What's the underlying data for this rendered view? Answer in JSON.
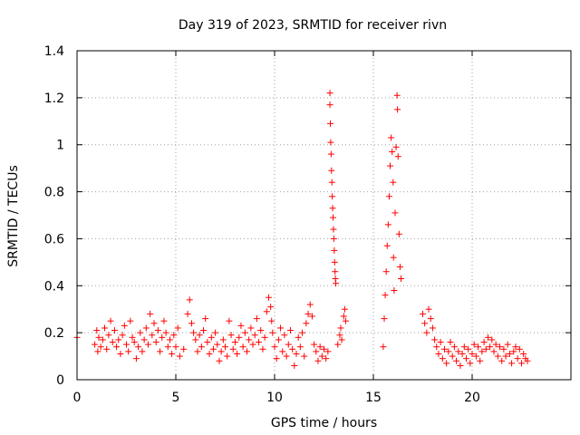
{
  "chart_data": {
    "type": "scatter",
    "title": "Day 319 of 2023, SRMTID for receiver rivn",
    "xlabel": "GPS time / hours",
    "ylabel": "SRMTID / TECUs",
    "xlim": [
      0,
      25
    ],
    "ylim": [
      0,
      1.4
    ],
    "x_ticks": [
      0,
      5,
      10,
      15,
      20
    ],
    "x_tick_labels": [
      "0",
      "5",
      "10",
      "15",
      "20"
    ],
    "y_ticks": [
      0,
      0.2,
      0.4,
      0.6,
      0.8,
      1.0,
      1.2,
      1.4
    ],
    "y_tick_labels": [
      "0",
      "0.2",
      "0.4",
      "0.6",
      "0.8",
      "1",
      "1.2",
      "1.4"
    ],
    "grid": true,
    "marker": "+",
    "color": "#ff0000",
    "series": [
      {
        "name": "SRMTID",
        "points": [
          [
            0.0,
            0.18
          ],
          [
            0.9,
            0.15
          ],
          [
            1.0,
            0.21
          ],
          [
            1.05,
            0.12
          ],
          [
            1.1,
            0.18
          ],
          [
            1.2,
            0.14
          ],
          [
            1.3,
            0.17
          ],
          [
            1.4,
            0.22
          ],
          [
            1.5,
            0.13
          ],
          [
            1.6,
            0.19
          ],
          [
            1.7,
            0.25
          ],
          [
            1.8,
            0.16
          ],
          [
            1.9,
            0.21
          ],
          [
            2.0,
            0.14
          ],
          [
            2.1,
            0.17
          ],
          [
            2.2,
            0.11
          ],
          [
            2.3,
            0.19
          ],
          [
            2.4,
            0.23
          ],
          [
            2.5,
            0.15
          ],
          [
            2.6,
            0.12
          ],
          [
            2.7,
            0.25
          ],
          [
            2.8,
            0.18
          ],
          [
            2.9,
            0.16
          ],
          [
            3.0,
            0.09
          ],
          [
            3.1,
            0.14
          ],
          [
            3.2,
            0.2
          ],
          [
            3.3,
            0.12
          ],
          [
            3.4,
            0.17
          ],
          [
            3.5,
            0.22
          ],
          [
            3.6,
            0.15
          ],
          [
            3.7,
            0.28
          ],
          [
            3.8,
            0.19
          ],
          [
            3.9,
            0.24
          ],
          [
            4.0,
            0.16
          ],
          [
            4.1,
            0.21
          ],
          [
            4.2,
            0.12
          ],
          [
            4.3,
            0.18
          ],
          [
            4.4,
            0.25
          ],
          [
            4.5,
            0.2
          ],
          [
            4.6,
            0.14
          ],
          [
            4.7,
            0.17
          ],
          [
            4.8,
            0.11
          ],
          [
            4.9,
            0.19
          ],
          [
            5.0,
            0.14
          ],
          [
            5.1,
            0.22
          ],
          [
            5.2,
            0.1
          ],
          [
            5.4,
            0.13
          ],
          [
            5.6,
            0.28
          ],
          [
            5.7,
            0.34
          ],
          [
            5.8,
            0.24
          ],
          [
            5.9,
            0.2
          ],
          [
            6.0,
            0.17
          ],
          [
            6.1,
            0.12
          ],
          [
            6.2,
            0.19
          ],
          [
            6.3,
            0.14
          ],
          [
            6.4,
            0.21
          ],
          [
            6.5,
            0.26
          ],
          [
            6.6,
            0.16
          ],
          [
            6.7,
            0.11
          ],
          [
            6.8,
            0.18
          ],
          [
            6.9,
            0.13
          ],
          [
            7.0,
            0.2
          ],
          [
            7.1,
            0.15
          ],
          [
            7.2,
            0.08
          ],
          [
            7.3,
            0.12
          ],
          [
            7.4,
            0.17
          ],
          [
            7.5,
            0.14
          ],
          [
            7.6,
            0.1
          ],
          [
            7.7,
            0.25
          ],
          [
            7.8,
            0.19
          ],
          [
            7.9,
            0.13
          ],
          [
            8.0,
            0.16
          ],
          [
            8.1,
            0.11
          ],
          [
            8.2,
            0.18
          ],
          [
            8.3,
            0.23
          ],
          [
            8.4,
            0.14
          ],
          [
            8.5,
            0.2
          ],
          [
            8.6,
            0.12
          ],
          [
            8.7,
            0.17
          ],
          [
            8.8,
            0.22
          ],
          [
            8.9,
            0.15
          ],
          [
            9.0,
            0.19
          ],
          [
            9.1,
            0.26
          ],
          [
            9.2,
            0.16
          ],
          [
            9.3,
            0.21
          ],
          [
            9.4,
            0.13
          ],
          [
            9.5,
            0.18
          ],
          [
            9.6,
            0.29
          ],
          [
            9.7,
            0.35
          ],
          [
            9.8,
            0.31
          ],
          [
            9.85,
            0.25
          ],
          [
            9.9,
            0.2
          ],
          [
            10.0,
            0.14
          ],
          [
            10.1,
            0.09
          ],
          [
            10.2,
            0.17
          ],
          [
            10.3,
            0.22
          ],
          [
            10.4,
            0.12
          ],
          [
            10.5,
            0.19
          ],
          [
            10.6,
            0.1
          ],
          [
            10.7,
            0.15
          ],
          [
            10.8,
            0.21
          ],
          [
            10.9,
            0.13
          ],
          [
            11.0,
            0.06
          ],
          [
            11.1,
            0.11
          ],
          [
            11.2,
            0.18
          ],
          [
            11.3,
            0.14
          ],
          [
            11.4,
            0.2
          ],
          [
            11.5,
            0.1
          ],
          [
            11.6,
            0.24
          ],
          [
            11.7,
            0.28
          ],
          [
            11.8,
            0.32
          ],
          [
            11.9,
            0.27
          ],
          [
            12.0,
            0.15
          ],
          [
            12.1,
            0.12
          ],
          [
            12.2,
            0.08
          ],
          [
            12.3,
            0.14
          ],
          [
            12.4,
            0.1
          ],
          [
            12.5,
            0.13
          ],
          [
            12.6,
            0.09
          ],
          [
            12.7,
            0.12
          ],
          [
            12.8,
            1.22
          ],
          [
            12.8,
            1.17
          ],
          [
            12.82,
            1.09
          ],
          [
            12.84,
            1.01
          ],
          [
            12.86,
            0.96
          ],
          [
            12.88,
            0.89
          ],
          [
            12.9,
            0.84
          ],
          [
            12.92,
            0.78
          ],
          [
            12.94,
            0.73
          ],
          [
            12.96,
            0.69
          ],
          [
            12.98,
            0.64
          ],
          [
            13.0,
            0.6
          ],
          [
            13.02,
            0.55
          ],
          [
            13.04,
            0.5
          ],
          [
            13.06,
            0.46
          ],
          [
            13.08,
            0.43
          ],
          [
            13.1,
            0.41
          ],
          [
            13.2,
            0.15
          ],
          [
            13.3,
            0.19
          ],
          [
            13.35,
            0.22
          ],
          [
            13.4,
            0.17
          ],
          [
            13.5,
            0.27
          ],
          [
            13.55,
            0.3
          ],
          [
            13.6,
            0.25
          ],
          [
            15.5,
            0.14
          ],
          [
            15.55,
            0.26
          ],
          [
            15.6,
            0.36
          ],
          [
            15.65,
            0.46
          ],
          [
            15.7,
            0.57
          ],
          [
            15.75,
            0.66
          ],
          [
            15.8,
            0.78
          ],
          [
            15.85,
            0.91
          ],
          [
            15.9,
            1.03
          ],
          [
            15.95,
            0.97
          ],
          [
            16.0,
            0.84
          ],
          [
            16.02,
            0.52
          ],
          [
            16.05,
            0.38
          ],
          [
            16.1,
            0.71
          ],
          [
            16.15,
            0.99
          ],
          [
            16.2,
            1.21
          ],
          [
            16.22,
            1.15
          ],
          [
            16.25,
            0.95
          ],
          [
            16.3,
            0.62
          ],
          [
            16.35,
            0.48
          ],
          [
            16.4,
            0.43
          ],
          [
            17.5,
            0.28
          ],
          [
            17.6,
            0.24
          ],
          [
            17.7,
            0.2
          ],
          [
            17.8,
            0.3
          ],
          [
            17.9,
            0.26
          ],
          [
            18.0,
            0.22
          ],
          [
            18.1,
            0.17
          ],
          [
            18.2,
            0.14
          ],
          [
            18.3,
            0.11
          ],
          [
            18.4,
            0.16
          ],
          [
            18.5,
            0.09
          ],
          [
            18.6,
            0.13
          ],
          [
            18.7,
            0.07
          ],
          [
            18.8,
            0.12
          ],
          [
            18.9,
            0.16
          ],
          [
            19.0,
            0.1
          ],
          [
            19.1,
            0.14
          ],
          [
            19.2,
            0.08
          ],
          [
            19.3,
            0.12
          ],
          [
            19.4,
            0.06
          ],
          [
            19.5,
            0.11
          ],
          [
            19.6,
            0.14
          ],
          [
            19.7,
            0.09
          ],
          [
            19.8,
            0.13
          ],
          [
            19.9,
            0.07
          ],
          [
            20.0,
            0.11
          ],
          [
            20.1,
            0.15
          ],
          [
            20.2,
            0.1
          ],
          [
            20.3,
            0.14
          ],
          [
            20.4,
            0.08
          ],
          [
            20.5,
            0.12
          ],
          [
            20.6,
            0.16
          ],
          [
            20.7,
            0.13
          ],
          [
            20.8,
            0.18
          ],
          [
            20.9,
            0.14
          ],
          [
            21.0,
            0.17
          ],
          [
            21.1,
            0.12
          ],
          [
            21.2,
            0.15
          ],
          [
            21.3,
            0.1
          ],
          [
            21.4,
            0.14
          ],
          [
            21.5,
            0.08
          ],
          [
            21.6,
            0.13
          ],
          [
            21.7,
            0.1
          ],
          [
            21.8,
            0.15
          ],
          [
            21.9,
            0.11
          ],
          [
            22.0,
            0.07
          ],
          [
            22.1,
            0.12
          ],
          [
            22.2,
            0.14
          ],
          [
            22.3,
            0.09
          ],
          [
            22.4,
            0.13
          ],
          [
            22.5,
            0.07
          ],
          [
            22.6,
            0.11
          ],
          [
            22.7,
            0.09
          ],
          [
            22.8,
            0.08
          ]
        ]
      }
    ]
  }
}
